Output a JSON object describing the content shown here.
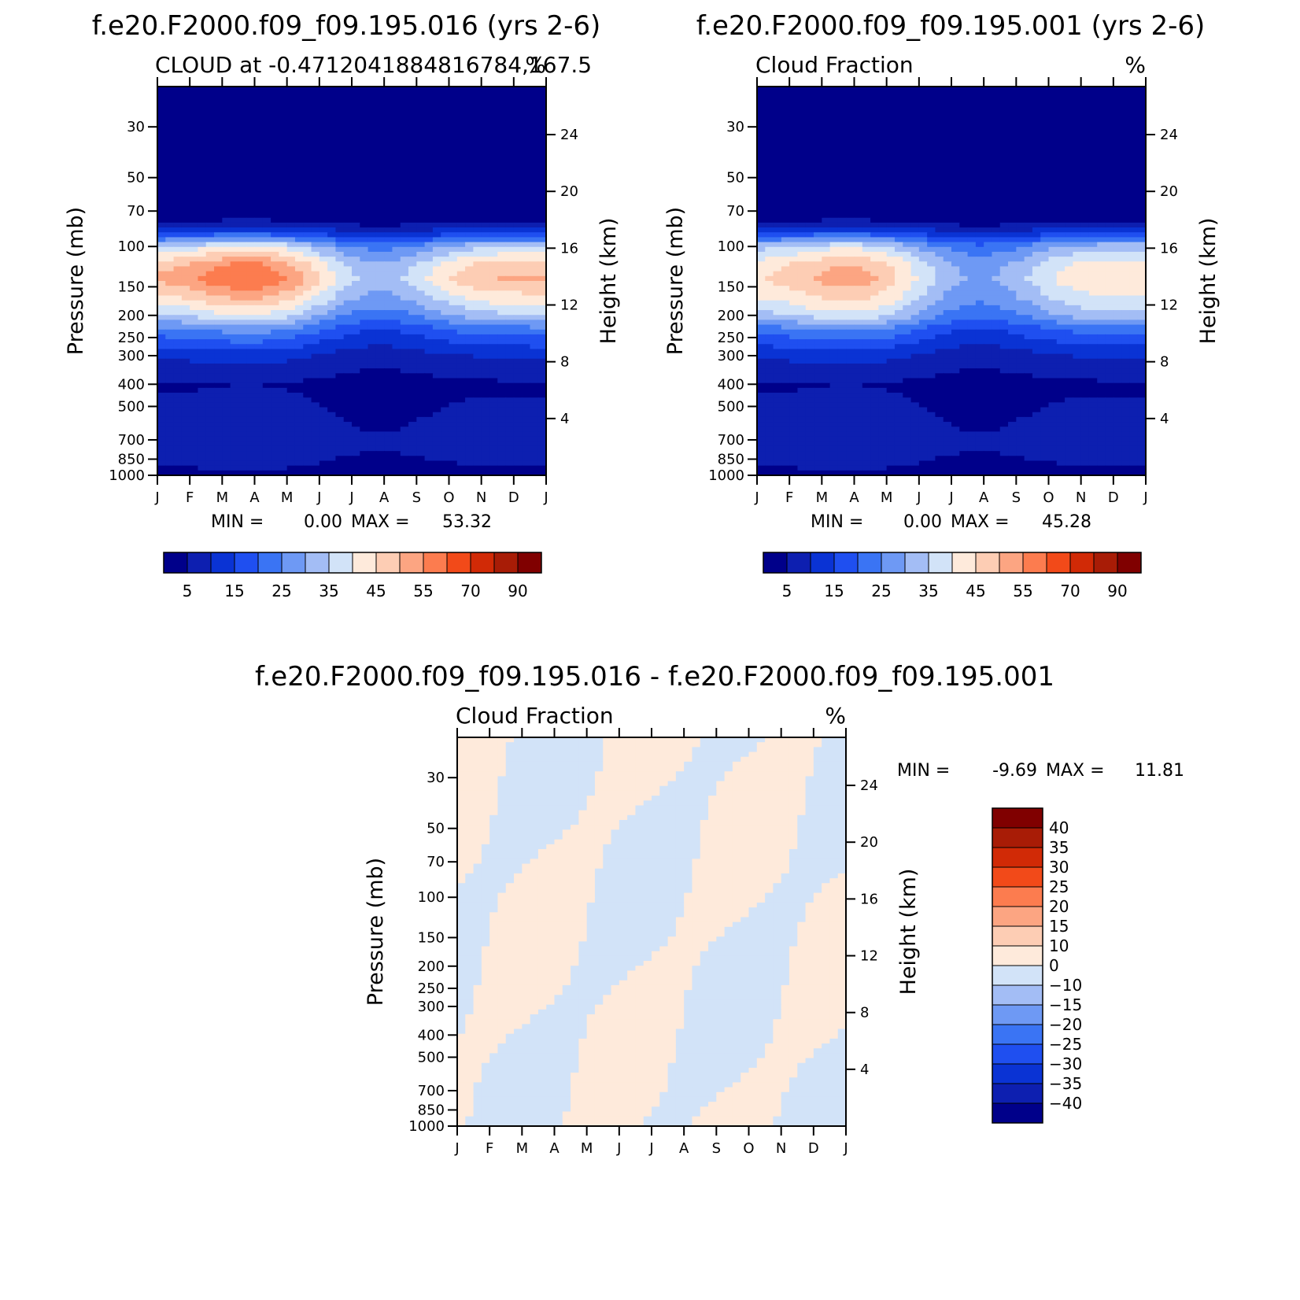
{
  "chart_data": [
    {
      "type": "heatmap",
      "title": "f.e20.F2000.f09_f09.195.016 (yrs 2-6)",
      "subtitle_left": "CLOUD at -0.4712041884816784,167.5",
      "subtitle_right": "%",
      "ylabel": "Pressure (mb)",
      "ylabel_right": "Height (km)",
      "x_ticklabels": [
        "J",
        "F",
        "M",
        "A",
        "M",
        "J",
        "J",
        "A",
        "S",
        "O",
        "N",
        "D",
        "J"
      ],
      "y_ticks": [
        30,
        50,
        70,
        100,
        150,
        200,
        250,
        300,
        400,
        500,
        700,
        850,
        1000
      ],
      "y2_ticks": [
        24,
        20,
        16,
        12,
        8,
        4
      ],
      "ylim": [
        1000,
        20
      ],
      "log_scale_y": true,
      "min_label": "MIN =",
      "min_value": "0.00",
      "max_label": "MAX =",
      "max_value": "53.32",
      "colorbar": {
        "orientation": "horizontal",
        "levels": [
          5,
          10,
          15,
          20,
          25,
          30,
          35,
          40,
          45,
          50,
          55,
          60,
          70,
          80,
          90
        ],
        "labels": [
          "5",
          "15",
          "25",
          "35",
          "45",
          "55",
          "70",
          "90"
        ]
      },
      "profile_pressure": [
        20,
        70,
        80,
        90,
        100,
        120,
        140,
        170,
        200,
        230,
        300,
        400,
        550,
        750,
        900,
        1000
      ],
      "profile_value": [
        0,
        0,
        6,
        18,
        33,
        45,
        48,
        40,
        32,
        22,
        10,
        4,
        6,
        8,
        5,
        3
      ]
    },
    {
      "type": "heatmap",
      "title": "f.e20.F2000.f09_f09.195.001 (yrs 2-6)",
      "subtitle_left": "Cloud Fraction",
      "subtitle_right": "%",
      "ylabel": "Pressure (mb)",
      "ylabel_right": "Height (km)",
      "x_ticklabels": [
        "J",
        "F",
        "M",
        "A",
        "M",
        "J",
        "J",
        "A",
        "S",
        "O",
        "N",
        "D",
        "J"
      ],
      "y_ticks": [
        30,
        50,
        70,
        100,
        150,
        200,
        250,
        300,
        400,
        500,
        700,
        850,
        1000
      ],
      "y2_ticks": [
        24,
        20,
        16,
        12,
        8,
        4
      ],
      "ylim": [
        1000,
        20
      ],
      "log_scale_y": true,
      "min_label": "MIN =",
      "min_value": "0.00",
      "max_label": "MAX =",
      "max_value": "45.28",
      "colorbar": {
        "orientation": "horizontal",
        "levels": [
          5,
          10,
          15,
          20,
          25,
          30,
          35,
          40,
          45,
          50,
          55,
          60,
          70,
          80,
          90
        ],
        "labels": [
          "5",
          "15",
          "25",
          "35",
          "45",
          "55",
          "70",
          "90"
        ]
      },
      "profile_pressure": [
        20,
        70,
        80,
        90,
        100,
        120,
        140,
        170,
        200,
        230,
        300,
        400,
        550,
        750,
        900,
        1000
      ],
      "profile_value": [
        0,
        0,
        6,
        18,
        31,
        40,
        42,
        37,
        31,
        21,
        10,
        4,
        6,
        8,
        5,
        3
      ]
    },
    {
      "type": "heatmap",
      "title": "f.e20.F2000.f09_f09.195.016 - f.e20.F2000.f09_f09.195.001",
      "subtitle_left": "Cloud Fraction",
      "subtitle_right": "%",
      "ylabel": "Pressure (mb)",
      "ylabel_right": "Height (km)",
      "x_ticklabels": [
        "J",
        "F",
        "M",
        "A",
        "M",
        "J",
        "J",
        "A",
        "S",
        "O",
        "N",
        "D",
        "J"
      ],
      "y_ticks": [
        30,
        50,
        70,
        100,
        150,
        200,
        250,
        300,
        400,
        500,
        700,
        850,
        1000
      ],
      "y2_ticks": [
        24,
        20,
        16,
        12,
        8,
        4
      ],
      "ylim": [
        1000,
        20
      ],
      "log_scale_y": true,
      "min_label": "MIN =",
      "min_value": "-9.69",
      "max_label": "MAX =",
      "max_value": "11.81",
      "colorbar": {
        "orientation": "vertical",
        "levels": [
          -40,
          -35,
          -30,
          -25,
          -20,
          -15,
          -10,
          0,
          10,
          15,
          20,
          25,
          30,
          35,
          40
        ],
        "labels": [
          "40",
          "35",
          "30",
          "25",
          "20",
          "15",
          "10",
          "0",
          "-10",
          "-15",
          "-20",
          "-25",
          "-30",
          "-35",
          "-40"
        ]
      }
    }
  ],
  "colors": {
    "seq": [
      "#00008a",
      "#0d1fb0",
      "#0a33d4",
      "#1f4ff0",
      "#3a74f4",
      "#6e99f4",
      "#a3bdf5",
      "#d2e3f8",
      "#feeadb",
      "#fdcdb4",
      "#fca582",
      "#fc7c4f",
      "#f24a19",
      "#d12a06",
      "#a81c06",
      "#800000"
    ],
    "diff": [
      "#00008a",
      "#0d1fb0",
      "#0a33d4",
      "#1f4ff0",
      "#3a74f4",
      "#6e99f4",
      "#a3bdf5",
      "#d2e3f8",
      "#feeadb",
      "#fdcdb4",
      "#fca582",
      "#fc7c4f",
      "#f24a19",
      "#d12a06",
      "#a81c06",
      "#800000"
    ]
  }
}
